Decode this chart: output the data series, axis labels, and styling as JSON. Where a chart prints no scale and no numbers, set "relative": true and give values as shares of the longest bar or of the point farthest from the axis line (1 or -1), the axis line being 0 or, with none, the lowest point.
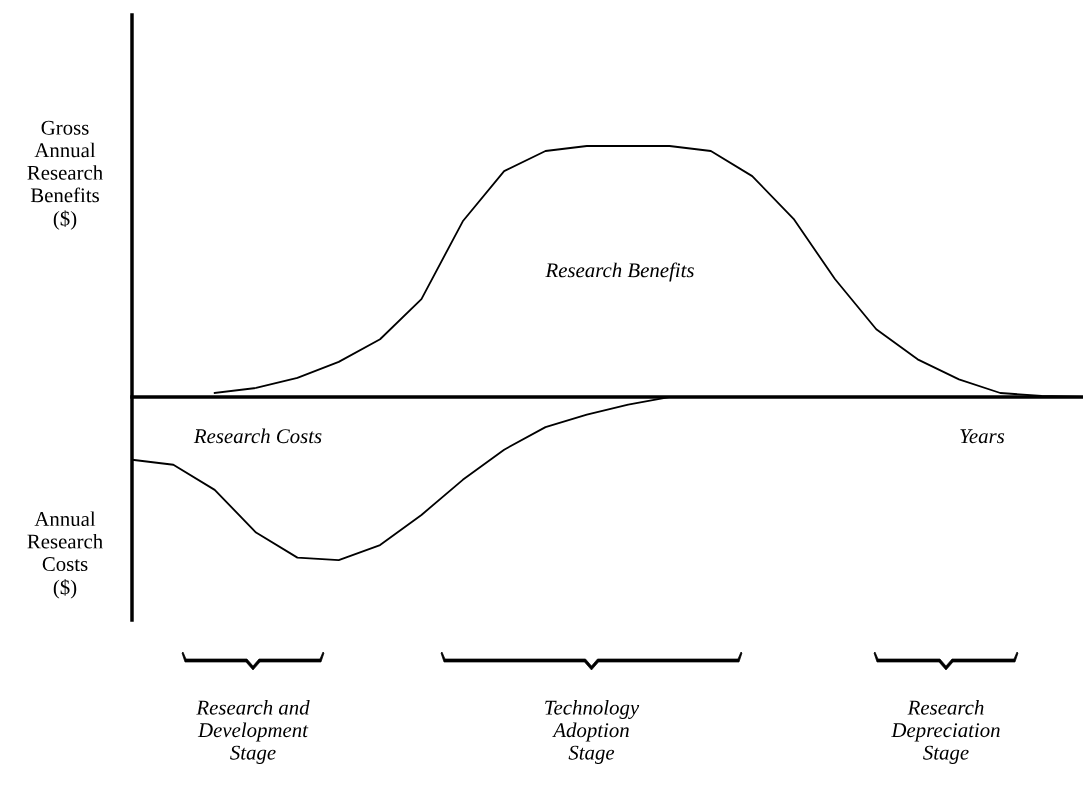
{
  "chart_data": {
    "type": "line",
    "relative": true,
    "ylabel": "Gross\nAnnual\nResearch\nBenefits\n($)",
    "xlabel": "Years",
    "categories": [
      null,
      null,
      null,
      null,
      null,
      null,
      null,
      null,
      null,
      null,
      null,
      null,
      null,
      null,
      null,
      null,
      null,
      null,
      null,
      null,
      null,
      null,
      null,
      null
    ],
    "series": [
      {
        "color": "#000000",
        "values": [
          null,
          null,
          0.016,
          0.036,
          0.076,
          0.14,
          0.23,
          0.39,
          0.7,
          0.9,
          0.98,
          1.0,
          1.0,
          1.0,
          0.98,
          0.88,
          0.71,
          0.47,
          0.27,
          0.15,
          0.07,
          0.016,
          0.004,
          0
        ]
      },
      {
        "color": "#000000",
        "values": [
          -0.25,
          -0.27,
          -0.37,
          -0.54,
          -0.64,
          -0.65,
          -0.59,
          -0.47,
          -0.33,
          -0.21,
          -0.12,
          -0.07,
          -0.03,
          0,
          null,
          null,
          null,
          null,
          null,
          null,
          null,
          null,
          null,
          null
        ]
      }
    ],
    "annotations": [
      "Research Benefits",
      "Research Costs",
      "Annual\nResearch\nCosts\n($)",
      "Research and\nDevelopment\nStage",
      "Technology\nAdoption\nStage",
      "Research\nDepreciation\nStage"
    ],
    "legend": false,
    "grid": false
  }
}
